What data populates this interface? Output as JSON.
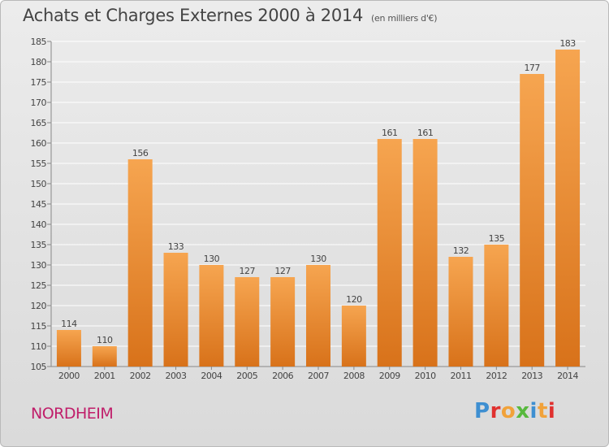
{
  "header": {
    "title": "Achats et Charges Externes 2000 à 2014",
    "subtitle": "(en milliers d'€)"
  },
  "footer": {
    "location": "NORDHEIM",
    "brand": "Proxiti"
  },
  "colors": {
    "bar_top": "#f6a550",
    "bar_bottom": "#d8721a",
    "location": "#c01e6a",
    "grid": "#ffffff",
    "logo_letters": [
      "#3e8fd1",
      "#e0312f",
      "#f1a23a",
      "#58b93e",
      "#3e8fd1",
      "#f1a23a",
      "#e0312f"
    ]
  },
  "chart_data": {
    "type": "bar",
    "title": "Achats et Charges Externes 2000 à 2014",
    "subtitle": "(en milliers d'€)",
    "xlabel": "",
    "ylabel": "",
    "categories": [
      "2000",
      "2001",
      "2002",
      "2003",
      "2004",
      "2005",
      "2006",
      "2007",
      "2008",
      "2009",
      "2010",
      "2011",
      "2012",
      "2013",
      "2014"
    ],
    "values": [
      114,
      110,
      156,
      133,
      130,
      127,
      127,
      130,
      120,
      161,
      161,
      132,
      135,
      177,
      183
    ],
    "ylim": [
      105,
      185
    ],
    "yticks": [
      105,
      110,
      115,
      120,
      125,
      130,
      135,
      140,
      145,
      150,
      155,
      160,
      165,
      170,
      175,
      180,
      185
    ],
    "grid": true,
    "legend": "none"
  }
}
